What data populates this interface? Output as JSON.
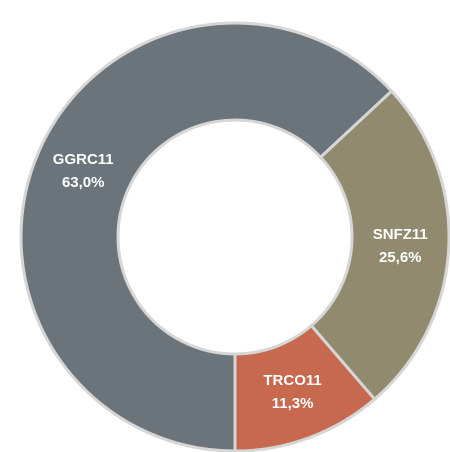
{
  "chart_data": {
    "type": "donut",
    "categories": [
      "GGRC11",
      "SNFZ11",
      "TRCO11"
    ],
    "values": [
      63.0,
      25.6,
      11.3
    ],
    "value_labels": [
      "63,0%",
      "25,6%",
      "11,3%"
    ],
    "colors": [
      "#6b747b",
      "#928a6f",
      "#c7694f"
    ]
  }
}
